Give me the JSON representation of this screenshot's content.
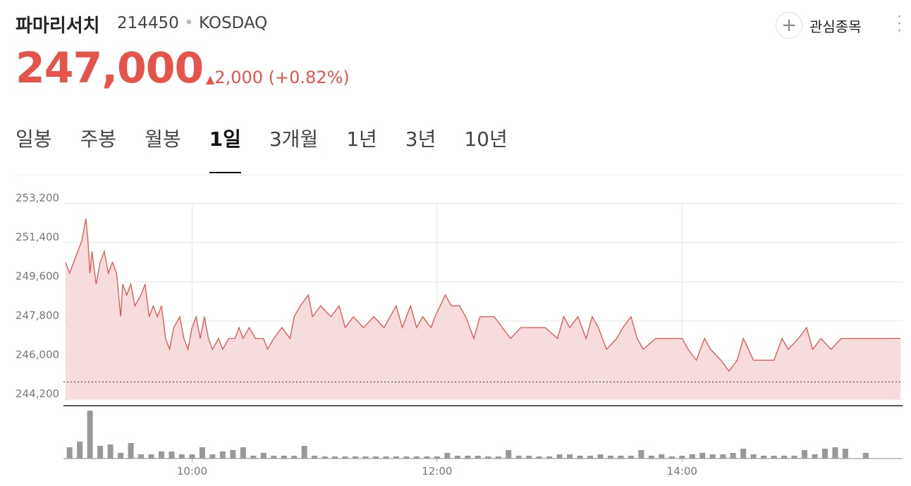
{
  "header": {
    "name": "파마리서치",
    "code": "214450",
    "market": "KOSDAQ",
    "watch_button": "관심종목",
    "price": "247,000",
    "change": "2,000",
    "change_pct": "(+0.82%)"
  },
  "tabs": [
    "일봉",
    "주봉",
    "월봉",
    "1일",
    "3개월",
    "1년",
    "3년",
    "10년"
  ],
  "active_tab": 3,
  "chart_data": {
    "type": "line",
    "x": [
      538,
      540,
      542,
      544,
      546,
      548,
      549,
      550,
      551,
      553,
      555,
      557,
      559,
      561,
      563,
      565,
      566,
      568,
      570,
      572,
      575,
      577,
      579,
      581,
      583,
      585,
      587,
      589,
      591,
      594,
      596,
      598,
      600,
      602,
      604,
      606,
      608,
      610,
      613,
      615,
      618,
      621,
      623,
      625,
      628,
      631,
      635,
      637,
      640,
      644,
      648,
      650,
      653,
      657,
      659,
      663,
      668,
      672,
      675,
      679,
      684,
      689,
      694,
      700,
      703,
      707,
      710,
      713,
      717,
      719,
      724,
      727,
      731,
      734,
      738,
      741,
      748,
      752,
      756,
      761,
      768,
      773,
      779,
      782,
      785,
      789,
      793,
      796,
      799,
      803,
      808,
      811,
      815,
      818,
      821,
      827,
      840,
      843,
      847,
      851,
      854,
      859,
      863,
      867,
      870,
      875,
      880,
      885,
      889,
      892,
      897,
      901,
      904,
      908,
      913,
      918,
      930,
      947
    ],
    "series": [
      {
        "name": "price",
        "color": "#e5534b",
        "values": [
          250500,
          250000,
          250500,
          251000,
          251500,
          252500,
          251500,
          250000,
          251000,
          249500,
          250500,
          251000,
          250000,
          250500,
          250000,
          248000,
          249500,
          249000,
          249500,
          248500,
          249000,
          249500,
          248000,
          248500,
          248000,
          248500,
          247000,
          246500,
          247500,
          248000,
          247000,
          246500,
          247500,
          248000,
          247000,
          248000,
          247000,
          246500,
          247000,
          246500,
          247000,
          247000,
          247500,
          247000,
          247500,
          247000,
          247000,
          246500,
          247000,
          247500,
          247000,
          248000,
          248500,
          249000,
          248000,
          248500,
          248000,
          248500,
          247500,
          248000,
          247500,
          248000,
          247500,
          248500,
          247500,
          248500,
          247500,
          248000,
          247500,
          248000,
          249000,
          248500,
          248500,
          248000,
          247000,
          248000,
          248000,
          247500,
          247000,
          247500,
          247500,
          247500,
          247000,
          248000,
          247500,
          248000,
          247000,
          248000,
          247500,
          246500,
          247000,
          247500,
          248000,
          247000,
          246500,
          247000,
          247000,
          246500,
          246000,
          247000,
          246500,
          246000,
          245500,
          246000,
          247000,
          246000,
          246000,
          246000,
          247000,
          246500,
          247000,
          247500,
          246500,
          247000,
          246500,
          247000,
          247000,
          247000
        ]
      }
    ],
    "fill_color": "#f6dcdc",
    "previous_close": 245000,
    "xlim": [
      537,
      948
    ],
    "ylim": [
      244200,
      253200
    ],
    "xticks": [
      {
        "value": 600,
        "label": "10:00"
      },
      {
        "value": 720,
        "label": "12:00"
      },
      {
        "value": 840,
        "label": "14:00"
      }
    ],
    "yticks": [
      {
        "value": 253200,
        "label": "253,200"
      },
      {
        "value": 251400,
        "label": "251,400"
      },
      {
        "value": 249600,
        "label": "249,600"
      },
      {
        "value": 247800,
        "label": "247,800"
      },
      {
        "value": 246000,
        "label": "246,000"
      },
      {
        "value": 244200,
        "label": "244,200"
      }
    ],
    "grid": true,
    "volume": {
      "type": "bar",
      "color": "#999999",
      "ylim": [
        0,
        75
      ],
      "x": [
        540,
        545,
        550,
        555,
        560,
        565,
        570,
        575,
        580,
        585,
        590,
        595,
        600,
        605,
        610,
        615,
        620,
        625,
        630,
        635,
        640,
        645,
        650,
        655,
        660,
        665,
        670,
        675,
        680,
        685,
        690,
        695,
        700,
        705,
        710,
        715,
        720,
        725,
        730,
        735,
        740,
        745,
        750,
        755,
        760,
        765,
        770,
        775,
        780,
        785,
        790,
        795,
        800,
        805,
        810,
        815,
        820,
        825,
        830,
        835,
        840,
        845,
        850,
        855,
        860,
        865,
        870,
        875,
        880,
        885,
        890,
        895,
        900,
        905,
        910,
        915,
        920,
        930
      ],
      "values": [
        16,
        24,
        68,
        18,
        20,
        8,
        22,
        6,
        6,
        10,
        10,
        6,
        6,
        16,
        6,
        10,
        12,
        16,
        4,
        8,
        4,
        4,
        4,
        18,
        4,
        3,
        3,
        3,
        3,
        3,
        3,
        3,
        3,
        3,
        3,
        3,
        3,
        8,
        4,
        4,
        4,
        3,
        3,
        12,
        4,
        4,
        3,
        3,
        6,
        6,
        4,
        4,
        6,
        4,
        4,
        4,
        12,
        4,
        6,
        3,
        4,
        6,
        8,
        6,
        6,
        8,
        14,
        6,
        4,
        4,
        4,
        4,
        12,
        6,
        14,
        16,
        14,
        8
      ]
    }
  }
}
